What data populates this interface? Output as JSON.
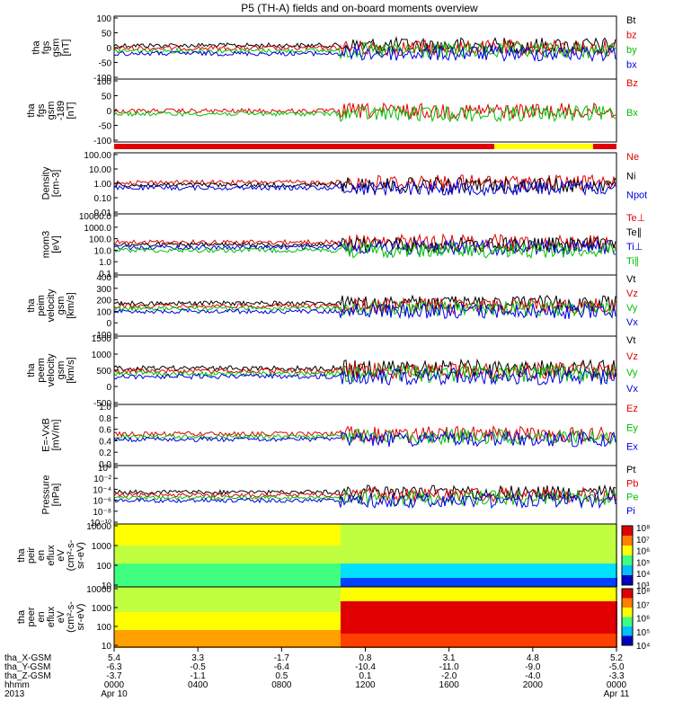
{
  "title": "P5 (TH-A) fields and on-board moments overview",
  "colors": {
    "black": "#000000",
    "red": "#e00000",
    "green": "#00c000",
    "blue": "#0000e0",
    "yellow": "#ffff00"
  },
  "chart_data": [
    {
      "type": "line",
      "ylabel_lines": [
        "tha",
        "fgs",
        "gsm",
        "[nT]"
      ],
      "yticks": [
        "100",
        "50",
        "0",
        "-50",
        "-100"
      ],
      "ylim": [
        -100,
        100
      ],
      "legend": [
        {
          "name": "Bt",
          "color": "#000000"
        },
        {
          "name": "bz",
          "color": "#e00000"
        },
        {
          "name": "by",
          "color": "#00c000"
        },
        {
          "name": "bx",
          "color": "#0000e0"
        }
      ]
    },
    {
      "type": "line",
      "ylabel_lines": [
        "tha",
        "fgs",
        "gsm",
        "-189",
        " [nT]"
      ],
      "yticks": [
        "100",
        "50",
        "0",
        "-50",
        "-100"
      ],
      "ylim": [
        -120,
        120
      ],
      "legend": [
        {
          "name": "Bz",
          "color": "#e00000"
        },
        {
          "name": "Bx",
          "color": "#00c000"
        }
      ]
    },
    {
      "type": "line",
      "ylabel_lines": [
        "Density",
        "[cm-3]"
      ],
      "yticks": [
        "100.00",
        "10.00",
        "1.00",
        "0.10",
        "0.01"
      ],
      "yscale": "log",
      "ylim": [
        0.01,
        100
      ],
      "legend": [
        {
          "name": "Ne",
          "color": "#e00000"
        },
        {
          "name": "Ni",
          "color": "#000000"
        },
        {
          "name": "Npot",
          "color": "#0000e0"
        }
      ]
    },
    {
      "type": "line",
      "ylabel_lines": [
        "mom3",
        "[eV]"
      ],
      "yticks": [
        "10000.0",
        "1000.0",
        "100.0",
        "10.0",
        "1.0",
        "0.1"
      ],
      "yscale": "log",
      "ylim": [
        0.1,
        10000
      ],
      "legend": [
        {
          "name": "Te⊥",
          "color": "#e00000"
        },
        {
          "name": "Te∥",
          "color": "#000000"
        },
        {
          "name": "Ti⊥",
          "color": "#0000e0"
        },
        {
          "name": "Ti∥",
          "color": "#00c000"
        }
      ]
    },
    {
      "type": "line",
      "ylabel_lines": [
        "tha",
        "peim",
        "velocity",
        "gsm",
        "[km/s]"
      ],
      "yticks": [
        "400",
        "300",
        "200",
        "100",
        "0",
        "-100"
      ],
      "ylim": [
        -100,
        400
      ],
      "legend": [
        {
          "name": "Vt",
          "color": "#000000"
        },
        {
          "name": "Vz",
          "color": "#e00000"
        },
        {
          "name": "Vy",
          "color": "#00c000"
        },
        {
          "name": "Vx",
          "color": "#0000e0"
        }
      ]
    },
    {
      "type": "line",
      "ylabel_lines": [
        "tha",
        "peem",
        "velocity",
        "gsm",
        "[km/s]"
      ],
      "yticks": [
        "1500",
        "1000",
        "500",
        "0",
        "-500"
      ],
      "ylim": [
        -500,
        1500
      ],
      "legend": [
        {
          "name": "Vt",
          "color": "#000000"
        },
        {
          "name": "Vz",
          "color": "#e00000"
        },
        {
          "name": "Vy",
          "color": "#00c000"
        },
        {
          "name": "Vx",
          "color": "#0000e0"
        }
      ]
    },
    {
      "type": "line",
      "ylabel_lines": [
        "E=-VxB",
        "[mV/m]"
      ],
      "yticks": [
        "1.0",
        "0.8",
        "0.6",
        "0.4",
        "0.2",
        "0.0"
      ],
      "ylim": [
        0,
        1
      ],
      "legend": [
        {
          "name": "Ez",
          "color": "#e00000"
        },
        {
          "name": "Ey",
          "color": "#00c000"
        },
        {
          "name": "Ex",
          "color": "#0000e0"
        }
      ]
    },
    {
      "type": "line",
      "ylabel_lines": [
        "Pressure",
        "[nPa]"
      ],
      "yticks": [
        "10⁰",
        "10⁻²",
        "10⁻⁴",
        "10⁻⁶",
        "10⁻⁸",
        "10⁻¹⁰"
      ],
      "yscale": "log",
      "legend": [
        {
          "name": "Pt",
          "color": "#000000"
        },
        {
          "name": "Pb",
          "color": "#e00000"
        },
        {
          "name": "Pe",
          "color": "#00c000"
        },
        {
          "name": "Pi",
          "color": "#0000e0"
        }
      ]
    },
    {
      "type": "heatmap",
      "ylabel_lines": [
        "tha",
        "peir",
        "en",
        "eflux",
        "eV",
        "(cm²-s-",
        "sr-eV)"
      ],
      "yticks": [
        "10000",
        "1000",
        "100",
        "10"
      ],
      "yscale": "log",
      "ylim": [
        10,
        10000
      ],
      "colorbar": [
        "10⁸",
        "10⁷",
        "10⁶",
        "10⁵",
        "10⁴",
        "10³"
      ]
    },
    {
      "type": "heatmap",
      "ylabel_lines": [
        "tha",
        "peer",
        "en",
        "eflux",
        "eV",
        "(cm²-s-",
        "sr-eV)"
      ],
      "yticks": [
        "10000",
        "1000",
        "100",
        "10"
      ],
      "yscale": "log",
      "ylim": [
        10,
        10000
      ],
      "colorbar": [
        "10⁸",
        "10⁷",
        "10⁶",
        "10⁵",
        "10⁴"
      ]
    }
  ],
  "xaxis": {
    "row_labels": [
      "tha_X-GSM",
      "tha_Y-GSM",
      "tha_Z-GSM",
      "hhmm",
      "2013"
    ],
    "columns": [
      [
        "5.4",
        "-6.3",
        "-3.7",
        "0000",
        "Apr 10"
      ],
      [
        "3.3",
        "-0.5",
        "-1.1",
        "0400",
        ""
      ],
      [
        "-1.7",
        "-6.4",
        "0.5",
        "0800",
        ""
      ],
      [
        "0.8",
        "-10.4",
        "0.1",
        "1200",
        ""
      ],
      [
        "3.1",
        "-11.0",
        "-2.0",
        "1600",
        ""
      ],
      [
        "4.8",
        "-9.0",
        "-4.0",
        "2000",
        ""
      ],
      [
        "5.2",
        "-5.0",
        "-3.3",
        "0000",
        "Apr 11"
      ]
    ]
  }
}
